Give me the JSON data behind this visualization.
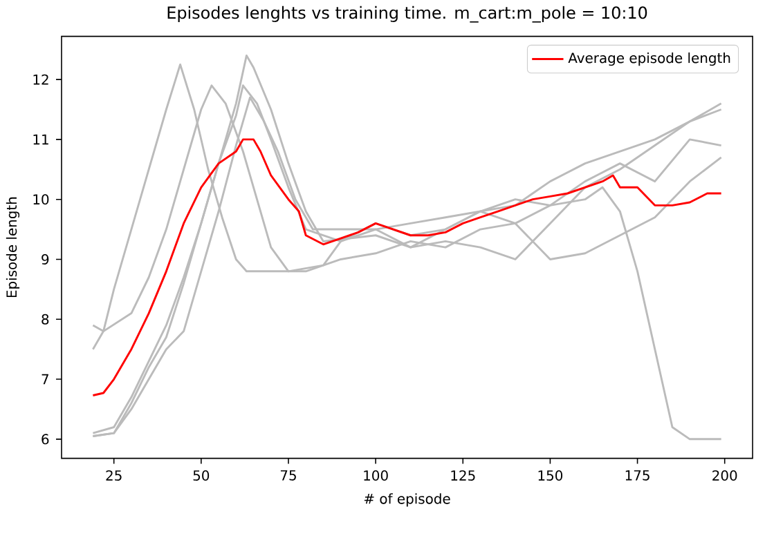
{
  "chart_data": {
    "type": "line",
    "title": "Episodes lenghts vs training time. m_cart:m_pole = 10:10",
    "xlabel": "# of episode",
    "ylabel": "Episode length",
    "xlim": [
      10,
      208
    ],
    "ylim": [
      5.68,
      12.72
    ],
    "xticks": [
      25,
      50,
      75,
      100,
      125,
      150,
      175,
      200
    ],
    "yticks": [
      6,
      7,
      8,
      9,
      10,
      11,
      12
    ],
    "legend": "top right",
    "series": [
      {
        "color": "#bbbbbb",
        "x": [
          19,
          22,
          25,
          30,
          35,
          40,
          44,
          48,
          52,
          56,
          60,
          63,
          70,
          80,
          90,
          100,
          110,
          120,
          130,
          140,
          150,
          160,
          165,
          170,
          175,
          180,
          185,
          190,
          199
        ],
        "values": [
          7.9,
          7.8,
          8.5,
          9.5,
          10.5,
          11.5,
          12.25,
          11.5,
          10.5,
          9.7,
          9.0,
          8.8,
          8.8,
          8.8,
          9.0,
          9.1,
          9.3,
          9.2,
          9.5,
          9.6,
          9.9,
          10.0,
          10.2,
          9.8,
          8.8,
          7.5,
          6.2,
          6.0,
          6.0
        ]
      },
      {
        "color": "#bbbbbb",
        "x": [
          19,
          22,
          30,
          35,
          40,
          45,
          50,
          53,
          57,
          62,
          66,
          70,
          75,
          85,
          90,
          100,
          110,
          120,
          130,
          140,
          150,
          160,
          170,
          180,
          190,
          199
        ],
        "values": [
          7.5,
          7.8,
          8.1,
          8.7,
          9.5,
          10.5,
          11.5,
          11.9,
          11.6,
          10.8,
          10.0,
          9.2,
          8.8,
          8.9,
          9.3,
          9.5,
          9.6,
          9.7,
          9.8,
          9.9,
          10.3,
          10.6,
          10.8,
          11.0,
          11.3,
          11.5
        ]
      },
      {
        "color": "#bbbbbb",
        "x": [
          19,
          25,
          30,
          35,
          40,
          45,
          50,
          55,
          60,
          63,
          65,
          70,
          75,
          80,
          85,
          100,
          110,
          120,
          130,
          140,
          150,
          160,
          170,
          180,
          190,
          199
        ],
        "values": [
          6.05,
          6.1,
          6.6,
          7.2,
          7.7,
          8.6,
          9.6,
          10.6,
          11.6,
          12.4,
          12.2,
          11.5,
          10.6,
          9.8,
          9.3,
          9.4,
          9.2,
          9.3,
          9.2,
          9.0,
          9.6,
          10.2,
          10.5,
          10.9,
          11.3,
          11.6
        ]
      },
      {
        "color": "#bbbbbb",
        "x": [
          19,
          25,
          30,
          35,
          40,
          45,
          50,
          55,
          60,
          62,
          66,
          70,
          75,
          80,
          90,
          100,
          110,
          120,
          130,
          140,
          150,
          160,
          170,
          180,
          190,
          199
        ],
        "values": [
          6.1,
          6.2,
          6.7,
          7.3,
          7.9,
          8.7,
          9.6,
          10.6,
          11.4,
          11.9,
          11.6,
          11.0,
          10.2,
          9.5,
          9.3,
          9.6,
          9.4,
          9.5,
          9.8,
          10.0,
          9.9,
          10.3,
          10.6,
          10.3,
          11.0,
          10.9
        ]
      },
      {
        "color": "#bbbbbb",
        "x": [
          19,
          25,
          30,
          35,
          40,
          45,
          50,
          55,
          60,
          64,
          68,
          72,
          77,
          82,
          90,
          100,
          110,
          120,
          130,
          140,
          150,
          160,
          170,
          180,
          190,
          199
        ],
        "values": [
          6.05,
          6.1,
          6.5,
          7.0,
          7.5,
          7.8,
          8.8,
          9.8,
          10.9,
          11.7,
          11.3,
          10.8,
          10.0,
          9.5,
          9.5,
          9.5,
          9.2,
          9.5,
          9.8,
          9.6,
          9.0,
          9.1,
          9.4,
          9.7,
          10.3,
          10.7
        ]
      },
      {
        "name": "Average episode length",
        "color": "#ff0000",
        "x": [
          19,
          22,
          25,
          30,
          35,
          40,
          45,
          50,
          55,
          60,
          62,
          65,
          67,
          70,
          75,
          78,
          80,
          85,
          90,
          95,
          100,
          105,
          110,
          115,
          120,
          125,
          130,
          135,
          140,
          145,
          150,
          155,
          160,
          165,
          168,
          170,
          175,
          180,
          185,
          190,
          195,
          199
        ],
        "values": [
          6.73,
          6.77,
          7.0,
          7.5,
          8.1,
          8.8,
          9.6,
          10.2,
          10.6,
          10.8,
          11.0,
          11.0,
          10.8,
          10.4,
          10.0,
          9.8,
          9.4,
          9.25,
          9.35,
          9.45,
          9.6,
          9.5,
          9.4,
          9.4,
          9.45,
          9.6,
          9.7,
          9.8,
          9.9,
          10.0,
          10.05,
          10.1,
          10.2,
          10.3,
          10.4,
          10.2,
          10.2,
          9.9,
          9.9,
          9.95,
          10.1,
          10.1
        ]
      }
    ]
  }
}
